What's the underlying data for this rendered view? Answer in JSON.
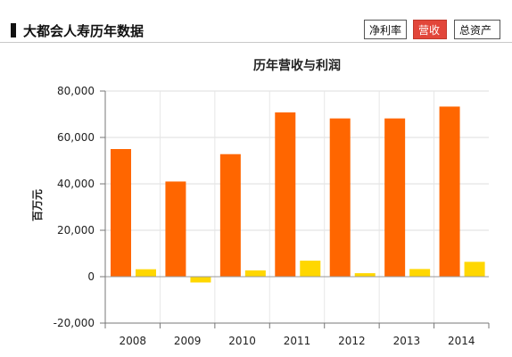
{
  "page": {
    "title": "大都会人寿历年数据"
  },
  "tabs": [
    {
      "label": "净利率",
      "active": false
    },
    {
      "label": "营收",
      "active": true
    },
    {
      "label": "总资产",
      "active": false
    }
  ],
  "colors": {
    "revenue": "#ff6600",
    "profit": "#ffd700",
    "active_tab": "#e2463a"
  },
  "chart_data": {
    "type": "bar",
    "title": "历年营收与利润",
    "ylabel": "百万元",
    "xlabel": "",
    "categories": [
      "2008",
      "2009",
      "2010",
      "2011",
      "2012",
      "2013",
      "2014"
    ],
    "series": [
      {
        "values": [
          55000,
          41000,
          52800,
          70800,
          68200,
          68200,
          73300
        ]
      },
      {
        "values": [
          3200,
          -2500,
          2700,
          6900,
          1500,
          3300,
          6400
        ]
      }
    ],
    "ylim": [
      -20000,
      80000
    ],
    "yticks": [
      -20000,
      0,
      20000,
      40000,
      60000,
      80000
    ],
    "ytick_labels": [
      "-20,000",
      "0",
      "20,000",
      "40,000",
      "60,000",
      "80,000"
    ],
    "grid": true,
    "legend": "none"
  }
}
